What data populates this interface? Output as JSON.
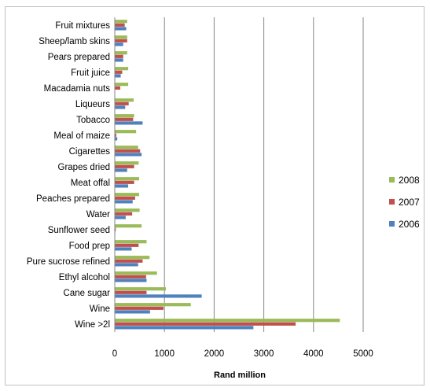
{
  "chart_data": {
    "type": "bar",
    "orientation": "horizontal",
    "categories": [
      "Fruit mixtures",
      "Sheep/lamb skins",
      "Pears prepared",
      "Fruit juice",
      "Macadamia nuts",
      "Liqueurs",
      "Tobacco",
      "Meal of maize",
      "Cigarettes",
      "Grapes dried",
      "Meat offal",
      "Peaches prepared",
      "Water",
      "Sunflower seed",
      "Food prep",
      "Pure sucrose refined",
      "Ethyl alcohol",
      "Cane sugar",
      "Wine",
      "Wine >2l"
    ],
    "series": [
      {
        "name": "2008",
        "color": "#9bbb59",
        "values": [
          250,
          250,
          250,
          270,
          270,
          380,
          390,
          430,
          470,
          480,
          490,
          490,
          500,
          540,
          640,
          700,
          850,
          1030,
          1530,
          4530
        ]
      },
      {
        "name": "2007",
        "color": "#c0504d",
        "values": [
          200,
          250,
          170,
          150,
          110,
          280,
          370,
          30,
          510,
          390,
          390,
          410,
          350,
          20,
          480,
          560,
          630,
          640,
          980,
          3640
        ]
      },
      {
        "name": "2006",
        "color": "#4f81bd",
        "values": [
          230,
          170,
          170,
          120,
          0,
          210,
          560,
          50,
          540,
          250,
          270,
          360,
          220,
          10,
          340,
          470,
          640,
          1750,
          710,
          2790
        ]
      }
    ],
    "xlabel": "Rand million",
    "ylabel": "",
    "title": "",
    "xlim": [
      0,
      5000
    ],
    "xticks": [
      "0",
      "1000",
      "2000",
      "3000",
      "4000",
      "5000"
    ],
    "grid": "vertical",
    "legend": "right"
  }
}
